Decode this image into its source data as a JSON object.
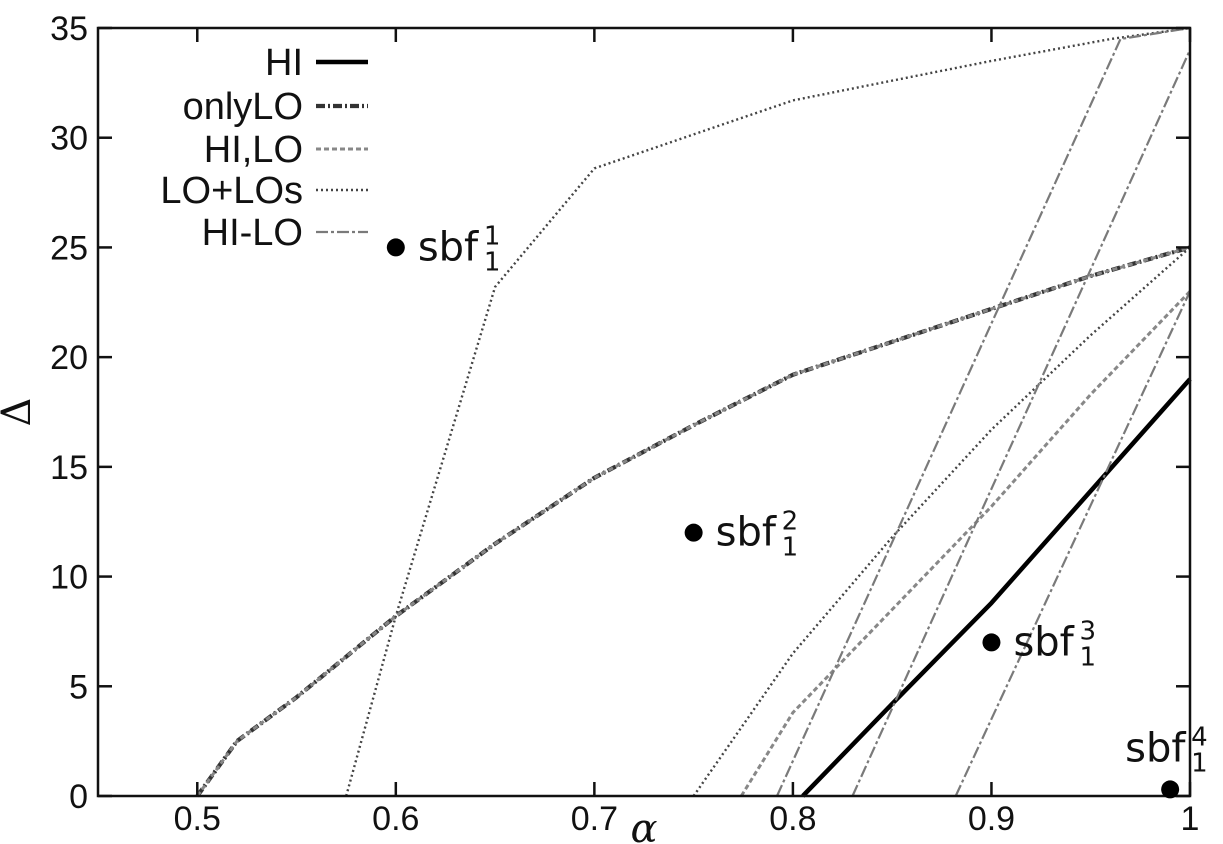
{
  "chart_data": {
    "type": "line",
    "title": "",
    "xlabel": "α",
    "ylabel": "Δ",
    "xlim": [
      0.45,
      1.0
    ],
    "ylim": [
      0,
      35
    ],
    "grid": false,
    "legend_position": "top-left",
    "x_ticks": [
      {
        "value": 0.5,
        "label": "0.5"
      },
      {
        "value": 0.6,
        "label": "0.6"
      },
      {
        "value": 0.7,
        "label": "0.7"
      },
      {
        "value": 0.8,
        "label": "0.8"
      },
      {
        "value": 0.9,
        "label": "0.9"
      },
      {
        "value": 1.0,
        "label": "1"
      }
    ],
    "y_ticks": [
      {
        "value": 0,
        "label": "0"
      },
      {
        "value": 5,
        "label": "5"
      },
      {
        "value": 10,
        "label": "10"
      },
      {
        "value": 15,
        "label": "15"
      },
      {
        "value": 20,
        "label": "20"
      },
      {
        "value": 25,
        "label": "25"
      },
      {
        "value": 30,
        "label": "30"
      },
      {
        "value": 35,
        "label": "35"
      }
    ],
    "series": [
      {
        "name": "HI",
        "style": "solid-thick",
        "color": "#000000",
        "lines": [
          [
            [
              0.805,
              0
            ],
            [
              0.85,
              4.2
            ],
            [
              0.9,
              8.8
            ],
            [
              0.95,
              13.9
            ],
            [
              1.0,
              19
            ]
          ]
        ]
      },
      {
        "name": "onlyLO",
        "style": "dashdot-thick",
        "color": "#333333",
        "lines": [
          [
            [
              0.5,
              0
            ],
            [
              0.52,
              2.5
            ],
            [
              0.55,
              4.5
            ],
            [
              0.6,
              8.2
            ],
            [
              0.65,
              11.5
            ],
            [
              0.7,
              14.5
            ],
            [
              0.75,
              16.9
            ],
            [
              0.8,
              19.2
            ],
            [
              0.85,
              20.7
            ],
            [
              0.9,
              22.2
            ],
            [
              0.95,
              23.7
            ],
            [
              1.0,
              25
            ]
          ]
        ]
      },
      {
        "name": "HI,LO",
        "style": "dashed-gray",
        "color": "#888888",
        "lines": [
          [
            [
              0.5,
              0
            ],
            [
              0.52,
              2.5
            ],
            [
              0.55,
              4.5
            ],
            [
              0.6,
              8.2
            ],
            [
              0.65,
              11.5
            ],
            [
              0.7,
              14.5
            ],
            [
              0.75,
              16.9
            ],
            [
              0.8,
              19.2
            ],
            [
              0.85,
              20.7
            ],
            [
              0.9,
              22.2
            ],
            [
              0.95,
              23.7
            ],
            [
              1.0,
              25
            ]
          ],
          [
            [
              0.774,
              0
            ],
            [
              0.8,
              3.8
            ],
            [
              0.85,
              8.5
            ],
            [
              0.9,
              13.2
            ],
            [
              0.95,
              18.3
            ],
            [
              1.0,
              23
            ]
          ]
        ]
      },
      {
        "name": "LO+LOs",
        "style": "dotted",
        "color": "#444444",
        "lines": [
          [
            [
              0.575,
              0
            ],
            [
              0.6,
              8.2
            ],
            [
              0.65,
              23.2
            ],
            [
              0.7,
              28.6
            ],
            [
              0.8,
              31.7
            ],
            [
              0.9,
              33.5
            ],
            [
              0.96,
              34.5
            ],
            [
              1.0,
              35
            ]
          ],
          [
            [
              0.75,
              0
            ],
            [
              0.8,
              6.5
            ],
            [
              0.85,
              11.8
            ],
            [
              0.9,
              16.7
            ],
            [
              0.95,
              21
            ],
            [
              1.0,
              25
            ]
          ]
        ]
      },
      {
        "name": "HI-LO",
        "style": "dashdot-gray",
        "color": "#7a7a7a",
        "lines": [
          [
            [
              0.792,
              0
            ],
            [
              0.965,
              34.5
            ],
            [
              1.0,
              35
            ]
          ],
          [
            [
              0.83,
              0
            ],
            [
              1.0,
              34
            ]
          ],
          [
            [
              0.882,
              0
            ],
            [
              1.0,
              23
            ]
          ]
        ]
      }
    ],
    "annotations": [
      {
        "x": 0.6,
        "y": 25,
        "label": "sbf",
        "sub": "1",
        "sup": "1",
        "label_pos": "right"
      },
      {
        "x": 0.75,
        "y": 12,
        "label": "sbf",
        "sub": "1",
        "sup": "2",
        "label_pos": "right"
      },
      {
        "x": 0.9,
        "y": 7,
        "label": "sbf",
        "sub": "1",
        "sup": "3",
        "label_pos": "right"
      },
      {
        "x": 0.99,
        "y": 0.3,
        "label": "sbf",
        "sub": "1",
        "sup": "4",
        "label_pos": "above"
      }
    ]
  }
}
